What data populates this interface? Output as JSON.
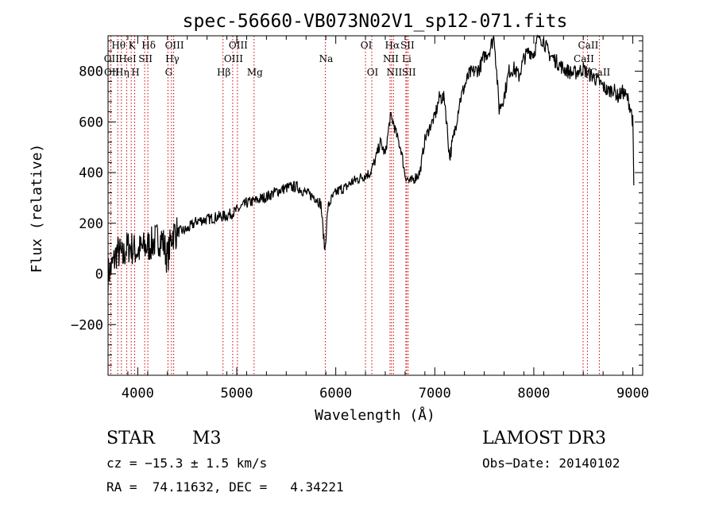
{
  "chart_data": {
    "type": "line",
    "title": "spec-56660-VB073N02V1_sp12-071.fits",
    "xlabel": "Wavelength (Å)",
    "ylabel": "Flux (relative)",
    "xlim": [
      3700,
      9100
    ],
    "ylim": [
      -400,
      940
    ],
    "x_ticks": [
      4000,
      5000,
      6000,
      7000,
      8000,
      9000
    ],
    "y_ticks": [
      -200,
      0,
      200,
      400,
      600,
      800
    ],
    "series": [
      {
        "name": "flux",
        "x": [
          3700,
          3730,
          3760,
          3790,
          3820,
          3850,
          3880,
          3920,
          3960,
          4000,
          4050,
          4100,
          4150,
          4200,
          4250,
          4300,
          4350,
          4400,
          4500,
          4600,
          4700,
          4800,
          4900,
          5000,
          5100,
          5200,
          5300,
          5400,
          5500,
          5600,
          5700,
          5800,
          5850,
          5890,
          5920,
          5950,
          6000,
          6050,
          6100,
          6150,
          6200,
          6250,
          6300,
          6350,
          6400,
          6450,
          6500,
          6550,
          6580,
          6620,
          6660,
          6700,
          6750,
          6800,
          6850,
          6900,
          6950,
          7000,
          7050,
          7100,
          7150,
          7200,
          7250,
          7300,
          7350,
          7400,
          7450,
          7500,
          7550,
          7600,
          7650,
          7700,
          7750,
          7800,
          7850,
          7900,
          7950,
          8000,
          8050,
          8100,
          8150,
          8200,
          8250,
          8300,
          8350,
          8400,
          8450,
          8500,
          8550,
          8600,
          8650,
          8700,
          8750,
          8800,
          8850,
          8900,
          8950,
          8980,
          9000,
          9010
        ],
        "y": [
          0,
          20,
          50,
          90,
          80,
          60,
          100,
          110,
          95,
          90,
          100,
          110,
          120,
          140,
          135,
          60,
          160,
          165,
          175,
          210,
          215,
          225,
          230,
          250,
          280,
          290,
          305,
          325,
          340,
          345,
          320,
          300,
          275,
          90,
          260,
          290,
          320,
          335,
          340,
          360,
          370,
          380,
          390,
          400,
          450,
          520,
          470,
          620,
          600,
          540,
          490,
          390,
          360,
          380,
          400,
          530,
          580,
          620,
          700,
          690,
          460,
          560,
          680,
          740,
          790,
          800,
          810,
          860,
          880,
          940,
          650,
          700,
          800,
          810,
          780,
          850,
          880,
          870,
          940,
          920,
          870,
          850,
          830,
          810,
          800,
          790,
          800,
          810,
          790,
          780,
          760,
          740,
          720,
          730,
          700,
          720,
          690,
          650,
          600,
          350
        ]
      }
    ],
    "lines": [
      {
        "label": "Hθ",
        "x": 3798,
        "row": 1
      },
      {
        "label": "OII",
        "x": 3727,
        "row": 2
      },
      {
        "label": "OII",
        "x": 3729,
        "row": 3
      },
      {
        "label": "Hη",
        "x": 3835,
        "row": 3
      },
      {
        "label": "K",
        "x": 3934,
        "row": 1
      },
      {
        "label": "HeI",
        "x": 3889,
        "row": 2
      },
      {
        "label": "H",
        "x": 3969,
        "row": 3
      },
      {
        "label": "SII",
        "x": 4070,
        "row": 2
      },
      {
        "label": "Hδ",
        "x": 4102,
        "row": 1
      },
      {
        "label": "OIII",
        "x": 4363,
        "row": 1
      },
      {
        "label": "Hγ",
        "x": 4341,
        "row": 2
      },
      {
        "label": "G",
        "x": 4305,
        "row": 3
      },
      {
        "label": "Hβ",
        "x": 4861,
        "row": 3
      },
      {
        "label": "OIII",
        "x": 5007,
        "row": 1
      },
      {
        "label": "OIII",
        "x": 4959,
        "row": 2
      },
      {
        "label": "Mg",
        "x": 5175,
        "row": 3
      },
      {
        "label": "Na",
        "x": 5894,
        "row": 2
      },
      {
        "label": "OI",
        "x": 6300,
        "row": 1
      },
      {
        "label": "OI",
        "x": 6364,
        "row": 3
      },
      {
        "label": "Hα",
        "x": 6563,
        "row": 1
      },
      {
        "label": "SII",
        "x": 6716,
        "row": 1
      },
      {
        "label": "NII",
        "x": 6548,
        "row": 2
      },
      {
        "label": "Li",
        "x": 6708,
        "row": 2
      },
      {
        "label": "NII",
        "x": 6583,
        "row": 3
      },
      {
        "label": "SII",
        "x": 6731,
        "row": 3
      },
      {
        "label": "CaII",
        "x": 8542,
        "row": 1
      },
      {
        "label": "CaII",
        "x": 8498,
        "row": 2
      },
      {
        "label": "CaII",
        "x": 8662,
        "row": 3
      }
    ]
  },
  "info": {
    "object_class": "STAR",
    "subclass": "M3",
    "survey": "LAMOST DR3",
    "velocity": "cz = −15.3 ± 1.5 km/s",
    "obs_date": "Obs−Date: 20140102",
    "coordinates": "RA =  74.11632, DEC =   4.34221"
  }
}
